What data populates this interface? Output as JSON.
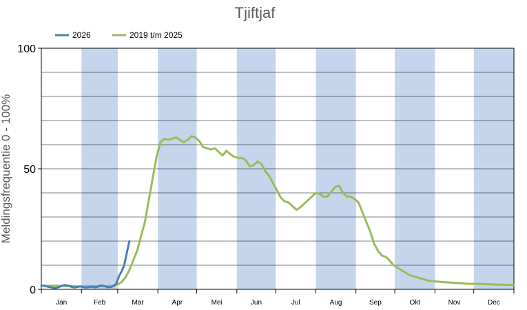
{
  "chart_data": {
    "type": "line",
    "title": "Tjiftjaf",
    "ylabel": "Meldingsfrequentie 0 - 100%",
    "xlabel": "",
    "ylim": [
      0,
      100
    ],
    "yticks": [
      "0",
      "50",
      "100"
    ],
    "months": [
      "Jan",
      "Feb",
      "Mar",
      "Apr",
      "Mei",
      "Jun",
      "Jul",
      "Aug",
      "Sep",
      "Okt",
      "Nov",
      "Dec"
    ],
    "shaded_months": [
      "Feb",
      "Apr",
      "Jun",
      "Aug",
      "Okt",
      "Dec"
    ],
    "grid": true,
    "legend_position": "top-left",
    "colors": {
      "band": "#c5d5ec",
      "grid": "#000000"
    },
    "series": [
      {
        "name": "2026",
        "color": "#4a7ebb",
        "x": [
          0,
          2,
          4,
          6,
          8,
          10,
          12,
          14,
          16,
          18,
          20,
          22,
          24,
          26,
          28,
          30,
          32,
          34,
          36,
          38,
          40,
          42,
          44,
          46,
          48,
          50,
          52,
          54,
          56,
          58,
          60,
          62,
          64,
          66,
          68
        ],
        "y": [
          1.5,
          1.5,
          1.2,
          1.0,
          0.8,
          0.5,
          0.7,
          1.0,
          1.5,
          1.8,
          1.6,
          1.3,
          0.9,
          0.8,
          1.0,
          1.2,
          1.0,
          0.8,
          0.9,
          1.1,
          1.0,
          0.8,
          1.2,
          1.6,
          1.4,
          1.1,
          0.9,
          1.0,
          1.4,
          2.5,
          5.5,
          7.5,
          10,
          15,
          20
        ]
      },
      {
        "name": "2019 t/m 2025",
        "color": "#9bbb59",
        "x": [
          0,
          10,
          20,
          30,
          40,
          50,
          55,
          59,
          62,
          65,
          68,
          71,
          74,
          77,
          80,
          83,
          86,
          89,
          92,
          95,
          98,
          101,
          104,
          107,
          110,
          113,
          116,
          119,
          122,
          125,
          128,
          131,
          134,
          137,
          140,
          143,
          146,
          149,
          152,
          155,
          158,
          161,
          164,
          167,
          170,
          173,
          176,
          179,
          182,
          185,
          188,
          191,
          194,
          197,
          200,
          203,
          206,
          209,
          212,
          215,
          218,
          221,
          224,
          227,
          230,
          233,
          236,
          239,
          242,
          245,
          248,
          251,
          254,
          257,
          260,
          263,
          266,
          269,
          272,
          275,
          278,
          281,
          284,
          287,
          290,
          295,
          300,
          310,
          320,
          330,
          340,
          350,
          365
        ],
        "y": [
          1.5,
          1.5,
          1.3,
          1.2,
          1.3,
          1.3,
          1.5,
          2.0,
          3.0,
          5.0,
          8.0,
          12.0,
          16.0,
          22.0,
          28.0,
          37.0,
          46.0,
          55.0,
          61.0,
          62.5,
          62.0,
          62.5,
          63.0,
          62.0,
          61.0,
          62.0,
          63.5,
          63.0,
          61.5,
          59.0,
          58.5,
          58.0,
          58.5,
          57.0,
          55.5,
          57.5,
          56.0,
          55.0,
          54.5,
          54.5,
          53.5,
          51.0,
          51.5,
          53.0,
          52.0,
          49.0,
          47.0,
          44.0,
          41.0,
          38.0,
          36.5,
          36.0,
          34.5,
          33.0,
          34.0,
          35.5,
          37.0,
          38.5,
          40.0,
          39.5,
          38.5,
          38.5,
          40.5,
          42.5,
          43.0,
          40.0,
          38.5,
          38.5,
          37.5,
          36.0,
          32.0,
          28.0,
          24.0,
          19.0,
          16.0,
          14.0,
          13.5,
          12.0,
          10.0,
          9.0,
          8.0,
          7.0,
          6.0,
          5.5,
          5.0,
          4.2,
          3.5,
          3.0,
          2.7,
          2.3,
          2.2,
          2.0,
          1.8
        ]
      }
    ]
  }
}
